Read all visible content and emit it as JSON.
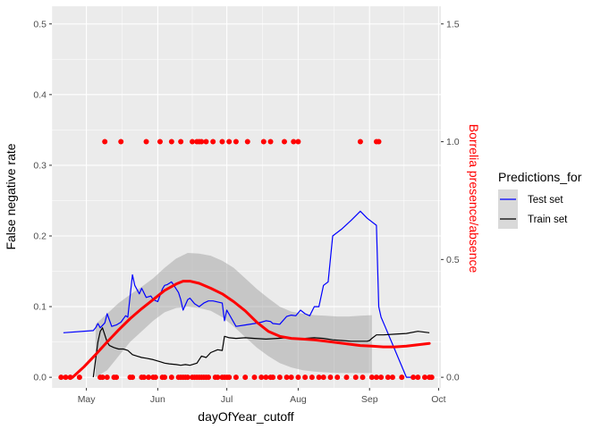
{
  "chart_data": {
    "type": "line",
    "title": "",
    "xlabel": "dayOfYear_cutoff",
    "ylabel_left": "False negative rate",
    "ylabel_right": "Borrelia presence/absence",
    "x_ticks": [
      "May",
      "Jun",
      "Jul",
      "Aug",
      "Sep",
      "Oct"
    ],
    "x_tick_days": [
      121,
      152,
      182,
      213,
      244,
      274
    ],
    "xlim": [
      106,
      275
    ],
    "y_left_ticks": [
      "0.0",
      "0.1",
      "0.2",
      "0.3",
      "0.4",
      "0.5"
    ],
    "y_left_tick_values": [
      0,
      0.1,
      0.2,
      0.3,
      0.4,
      0.5
    ],
    "ylim_left": [
      -0.015,
      0.525
    ],
    "y_right_ticks": [
      "0.0",
      "0.5",
      "1.0",
      "1.5"
    ],
    "y_right_tick_values": [
      0,
      0.5,
      1.0,
      1.5
    ],
    "ylim_right": [
      -0.045,
      1.575
    ],
    "grid": true,
    "legend": {
      "title": "Predictions_for",
      "placement": "right",
      "entries": [
        {
          "label": "Test set",
          "color": "#0000FF"
        },
        {
          "label": "Train set",
          "color": "#000000"
        }
      ]
    },
    "series": [
      {
        "name": "Test set",
        "color": "#0000FF",
        "x": [
          111,
          124,
          125,
          126,
          127,
          129,
          130,
          132,
          134,
          136,
          138,
          139,
          141,
          142,
          144,
          145,
          147,
          149,
          150,
          152,
          154,
          155,
          156,
          158,
          159,
          161,
          162,
          163,
          165,
          166,
          168,
          170,
          172,
          174,
          176,
          180,
          181,
          182,
          186,
          190,
          194,
          197,
          199,
          201,
          202,
          205,
          208,
          210,
          212,
          214,
          216,
          218,
          220,
          222,
          224,
          226,
          228,
          232,
          236,
          240,
          243,
          247,
          248,
          249,
          251,
          260,
          263
        ],
        "y": [
          0.063,
          0.066,
          0.07,
          0.076,
          0.07,
          0.077,
          0.09,
          0.072,
          0.074,
          0.078,
          0.087,
          0.085,
          0.145,
          0.13,
          0.118,
          0.126,
          0.113,
          0.115,
          0.11,
          0.107,
          0.125,
          0.13,
          0.131,
          0.135,
          0.13,
          0.12,
          0.11,
          0.095,
          0.11,
          0.112,
          0.104,
          0.1,
          0.105,
          0.108,
          0.108,
          0.105,
          0.08,
          0.095,
          0.072,
          0.074,
          0.076,
          0.078,
          0.08,
          0.079,
          0.076,
          0.075,
          0.086,
          0.088,
          0.087,
          0.095,
          0.09,
          0.087,
          0.1,
          0.1,
          0.13,
          0.135,
          0.2,
          0.21,
          0.222,
          0.235,
          0.225,
          0.215,
          0.1,
          0.085,
          0.07,
          0.0,
          0.0
        ]
      },
      {
        "name": "Train set",
        "color": "#000000",
        "x": [
          124,
          126,
          127,
          128,
          130,
          131,
          133,
          135,
          137,
          139,
          141,
          143,
          145,
          147,
          150,
          153,
          155,
          157,
          160,
          162,
          164,
          166,
          169,
          171,
          173,
          175,
          178,
          180,
          181,
          183,
          186,
          190,
          194,
          199,
          204,
          208,
          212,
          216,
          220,
          224,
          228,
          232,
          236,
          240,
          243,
          244,
          245,
          247,
          250,
          255,
          260,
          265,
          270
        ],
        "y": [
          0.0,
          0.05,
          0.065,
          0.07,
          0.05,
          0.045,
          0.042,
          0.04,
          0.04,
          0.038,
          0.032,
          0.03,
          0.028,
          0.027,
          0.025,
          0.022,
          0.02,
          0.019,
          0.018,
          0.017,
          0.018,
          0.017,
          0.02,
          0.03,
          0.028,
          0.035,
          0.039,
          0.038,
          0.058,
          0.056,
          0.055,
          0.056,
          0.055,
          0.054,
          0.055,
          0.056,
          0.055,
          0.055,
          0.056,
          0.055,
          0.053,
          0.052,
          0.051,
          0.051,
          0.051,
          0.052,
          0.055,
          0.06,
          0.06,
          0.061,
          0.062,
          0.065,
          0.063
        ]
      }
    ],
    "smooth": {
      "color": "#FF0000",
      "x": [
        115,
        120,
        125,
        130,
        135,
        140,
        145,
        150,
        155,
        160,
        163,
        166,
        170,
        175,
        180,
        185,
        190,
        195,
        200,
        205,
        210,
        215,
        220,
        225,
        230,
        235,
        240,
        245,
        250,
        255,
        260,
        265,
        270
      ],
      "y": [
        0.0,
        0.015,
        0.032,
        0.05,
        0.067,
        0.083,
        0.097,
        0.11,
        0.123,
        0.132,
        0.136,
        0.136,
        0.133,
        0.126,
        0.118,
        0.107,
        0.094,
        0.078,
        0.065,
        0.058,
        0.055,
        0.054,
        0.053,
        0.051,
        0.049,
        0.047,
        0.045,
        0.044,
        0.043,
        0.043,
        0.044,
        0.046,
        0.048
      ]
    },
    "confidence_band": {
      "color": "#999999",
      "x": [
        125,
        130,
        135,
        140,
        145,
        150,
        155,
        160,
        165,
        170,
        175,
        180,
        185,
        190,
        195,
        200,
        205,
        210,
        215,
        220,
        225,
        230,
        235,
        240,
        245
      ],
      "upper": [
        0.075,
        0.09,
        0.105,
        0.117,
        0.128,
        0.14,
        0.155,
        0.168,
        0.176,
        0.175,
        0.172,
        0.165,
        0.155,
        0.14,
        0.125,
        0.112,
        0.1,
        0.093,
        0.09,
        0.088,
        0.087,
        0.086,
        0.086,
        0.087,
        0.088
      ],
      "lower": [
        0.0,
        0.01,
        0.03,
        0.05,
        0.065,
        0.08,
        0.092,
        0.098,
        0.1,
        0.098,
        0.094,
        0.085,
        0.072,
        0.057,
        0.042,
        0.03,
        0.02,
        0.014,
        0.01,
        0.008,
        0.007,
        0.006,
        0.006,
        0.006,
        0.006
      ]
    },
    "presence_points": {
      "axis": "right",
      "color": "#FF0000",
      "present_x": [
        129,
        136,
        147,
        153,
        158,
        162,
        167,
        169,
        170,
        171,
        173,
        176,
        180,
        183,
        186,
        191,
        198,
        201,
        207,
        211,
        213,
        240,
        247,
        248
      ],
      "absent_x": [
        110,
        112,
        114,
        118,
        127,
        128,
        130,
        133,
        134,
        140,
        141,
        145,
        146,
        148,
        150,
        151,
        154,
        155,
        158,
        161,
        162,
        163,
        164,
        165,
        167,
        168,
        169,
        170,
        171,
        172,
        173,
        174,
        177,
        178,
        180,
        181,
        182,
        183,
        186,
        190,
        194,
        197,
        199,
        201,
        202,
        205,
        208,
        210,
        213,
        216,
        219,
        222,
        224,
        227,
        230,
        234,
        238,
        241,
        245,
        247,
        249,
        252,
        254,
        258,
        263,
        265,
        268,
        270,
        271
      ]
    }
  }
}
